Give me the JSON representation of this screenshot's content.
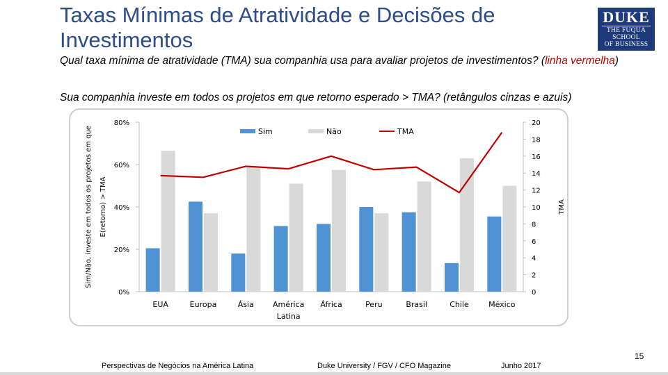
{
  "slide": {
    "title": "Taxas Mínimas de Atratividade e Decisões de Investimentos",
    "question1": "Qual taxa mínima de atratividade (TMA) sua companhia usa para avaliar projetos de investimentos? (",
    "question1_red": "linha vermelha",
    "question1_end": ")",
    "question2": "Sua companhia investe em todos os projetos em que retorno esperado > TMA? (retângulos cinzas e azuis)",
    "logo": {
      "line1": "DUKE",
      "line2": "THE FUQUA",
      "line3": "SCHOOL",
      "line4": "OF BUSINESS"
    },
    "footer": {
      "left": "Perspectivas de Negócios na América Latina",
      "center": "Duke University / FGV / CFO Magazine",
      "right": "Junho 2017"
    },
    "page_number": "15"
  },
  "chart_data": {
    "type": "bar",
    "categories": [
      "EUA",
      "Europa",
      "Ásia",
      "América Latina",
      "África",
      "Peru",
      "Brasil",
      "Chile",
      "México"
    ],
    "series": [
      {
        "name": "Sim",
        "kind": "bar",
        "axis": "left",
        "color": "#4f93d4",
        "values": [
          0.205,
          0.425,
          0.18,
          0.31,
          0.32,
          0.4,
          0.375,
          0.135,
          0.355
        ]
      },
      {
        "name": "Não",
        "kind": "bar",
        "axis": "left",
        "color": "#d9d9d9",
        "values": [
          0.665,
          0.37,
          0.59,
          0.51,
          0.575,
          0.37,
          0.52,
          0.63,
          0.5
        ]
      },
      {
        "name": "TMA",
        "kind": "line",
        "axis": "right",
        "color": "#c00000",
        "values": [
          13.7,
          13.5,
          14.8,
          14.5,
          16.0,
          14.4,
          14.7,
          11.7,
          18.8
        ]
      }
    ],
    "ylabel": "Sim/Não, investe em todos os projetos em que E(retorno) > TMA",
    "y2label": "TMA",
    "ylim": [
      0,
      0.8
    ],
    "yticks": [
      "0%",
      "20%",
      "40%",
      "60%",
      "80%"
    ],
    "y2lim": [
      0,
      20
    ],
    "y2ticks": [
      "0",
      "2",
      "4",
      "6",
      "8",
      "10",
      "12",
      "14",
      "16",
      "18",
      "20"
    ],
    "legend": [
      "Sim",
      "Não",
      "TMA"
    ],
    "legend_position": "top-center",
    "grid": false
  }
}
